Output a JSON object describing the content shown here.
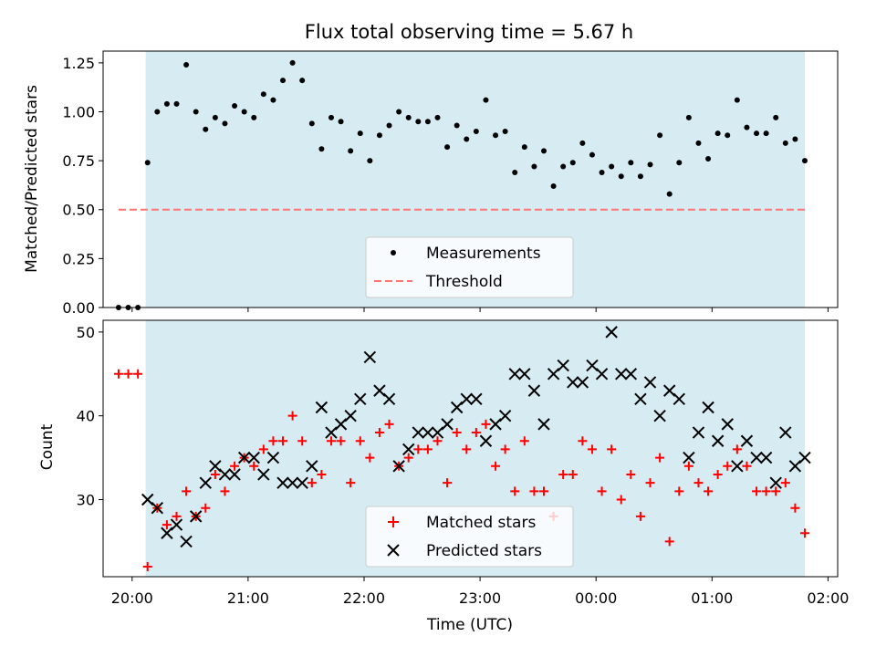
{
  "chart_data": [
    {
      "type": "scatter",
      "title": "Flux total observing time = 5.67 h",
      "xlabel": "",
      "ylabel": "Matched/Predicted stars",
      "xlim": [
        "19:45",
        "02:05"
      ],
      "ylim": [
        0,
        1.31
      ],
      "xticks": [
        "20:00",
        "21:00",
        "22:00",
        "23:00",
        "00:00",
        "01:00",
        "02:00"
      ],
      "yticks": [
        "0.00",
        "0.25",
        "0.50",
        "0.75",
        "1.00",
        "1.25"
      ],
      "shaded_region": [
        "20:07",
        "01:48"
      ],
      "legend": {
        "placement": "lower-center"
      },
      "series": [
        {
          "name": "Measurements",
          "color": "#000000",
          "marker": "dot",
          "points": [
            [
              "19:53",
              0.0
            ],
            [
              "19:58",
              0.0
            ],
            [
              "20:03",
              0.0
            ],
            [
              "20:08",
              0.74
            ],
            [
              "20:13",
              1.0
            ],
            [
              "20:18",
              1.04
            ],
            [
              "20:23",
              1.04
            ],
            [
              "20:28",
              1.24
            ],
            [
              "20:33",
              1.0
            ],
            [
              "20:38",
              0.91
            ],
            [
              "20:43",
              0.97
            ],
            [
              "20:48",
              0.94
            ],
            [
              "20:53",
              1.03
            ],
            [
              "20:58",
              1.0
            ],
            [
              "21:03",
              0.97
            ],
            [
              "21:08",
              1.09
            ],
            [
              "21:13",
              1.06
            ],
            [
              "21:18",
              1.16
            ],
            [
              "21:23",
              1.25
            ],
            [
              "21:28",
              1.16
            ],
            [
              "21:33",
              0.94
            ],
            [
              "21:38",
              0.81
            ],
            [
              "21:43",
              0.97
            ],
            [
              "21:48",
              0.95
            ],
            [
              "21:53",
              0.8
            ],
            [
              "21:58",
              0.89
            ],
            [
              "22:03",
              0.75
            ],
            [
              "22:08",
              0.88
            ],
            [
              "22:13",
              0.93
            ],
            [
              "22:18",
              1.0
            ],
            [
              "22:23",
              0.97
            ],
            [
              "22:28",
              0.95
            ],
            [
              "22:33",
              0.95
            ],
            [
              "22:38",
              0.97
            ],
            [
              "22:43",
              0.82
            ],
            [
              "22:48",
              0.93
            ],
            [
              "22:53",
              0.86
            ],
            [
              "22:58",
              0.9
            ],
            [
              "23:03",
              1.06
            ],
            [
              "23:08",
              0.88
            ],
            [
              "23:13",
              0.9
            ],
            [
              "23:18",
              0.69
            ],
            [
              "23:23",
              0.82
            ],
            [
              "23:28",
              0.72
            ],
            [
              "23:33",
              0.8
            ],
            [
              "23:38",
              0.62
            ],
            [
              "23:43",
              0.72
            ],
            [
              "23:48",
              0.74
            ],
            [
              "23:53",
              0.84
            ],
            [
              "23:58",
              0.78
            ],
            [
              "00:03",
              0.69
            ],
            [
              "00:08",
              0.72
            ],
            [
              "00:13",
              0.67
            ],
            [
              "00:18",
              0.74
            ],
            [
              "00:23",
              0.67
            ],
            [
              "00:28",
              0.73
            ],
            [
              "00:33",
              0.88
            ],
            [
              "00:38",
              0.58
            ],
            [
              "00:43",
              0.74
            ],
            [
              "00:48",
              0.97
            ],
            [
              "00:53",
              0.84
            ],
            [
              "00:58",
              0.76
            ],
            [
              "01:03",
              0.89
            ],
            [
              "01:08",
              0.88
            ],
            [
              "01:13",
              1.06
            ],
            [
              "01:18",
              0.92
            ],
            [
              "01:23",
              0.89
            ],
            [
              "01:28",
              0.89
            ],
            [
              "01:33",
              0.97
            ],
            [
              "01:38",
              0.84
            ],
            [
              "01:43",
              0.86
            ],
            [
              "01:48",
              0.75
            ]
          ]
        },
        {
          "name": "Threshold",
          "color": "#ff7575",
          "style": "dashed",
          "points": [
            [
              "19:53",
              0.5
            ],
            [
              "01:48",
              0.5
            ]
          ]
        }
      ]
    },
    {
      "type": "scatter",
      "title": "",
      "xlabel": "Time (UTC)",
      "ylabel": "Count",
      "xlim": [
        "19:45",
        "02:05"
      ],
      "ylim": [
        20.8,
        51.4
      ],
      "xticks": [
        "20:00",
        "21:00",
        "22:00",
        "23:00",
        "00:00",
        "01:00",
        "02:00"
      ],
      "yticks": [
        "30",
        "40",
        "50"
      ],
      "shaded_region": [
        "20:07",
        "01:48"
      ],
      "legend": {
        "placement": "lower-center"
      },
      "series": [
        {
          "name": "Matched stars",
          "color": "#ff0000",
          "marker": "plus",
          "points": [
            [
              "19:53",
              45
            ],
            [
              "19:58",
              45
            ],
            [
              "20:03",
              45
            ],
            [
              "20:08",
              22
            ],
            [
              "20:13",
              29
            ],
            [
              "20:18",
              27
            ],
            [
              "20:23",
              28
            ],
            [
              "20:28",
              31
            ],
            [
              "20:33",
              28
            ],
            [
              "20:38",
              29
            ],
            [
              "20:43",
              33
            ],
            [
              "20:48",
              31
            ],
            [
              "20:53",
              34
            ],
            [
              "20:58",
              35
            ],
            [
              "21:03",
              34
            ],
            [
              "21:08",
              36
            ],
            [
              "21:13",
              37
            ],
            [
              "21:18",
              37
            ],
            [
              "21:23",
              40
            ],
            [
              "21:28",
              37
            ],
            [
              "21:33",
              32
            ],
            [
              "21:38",
              33
            ],
            [
              "21:43",
              37
            ],
            [
              "21:48",
              37
            ],
            [
              "21:53",
              32
            ],
            [
              "21:58",
              37
            ],
            [
              "22:03",
              35
            ],
            [
              "22:08",
              38
            ],
            [
              "22:13",
              39
            ],
            [
              "22:18",
              34
            ],
            [
              "22:23",
              35
            ],
            [
              "22:28",
              36
            ],
            [
              "22:33",
              36
            ],
            [
              "22:38",
              37
            ],
            [
              "22:43",
              32
            ],
            [
              "22:48",
              38
            ],
            [
              "22:53",
              36
            ],
            [
              "22:58",
              38
            ],
            [
              "23:03",
              39
            ],
            [
              "23:08",
              34
            ],
            [
              "23:13",
              36
            ],
            [
              "23:18",
              31
            ],
            [
              "23:23",
              37
            ],
            [
              "23:28",
              31
            ],
            [
              "23:33",
              31
            ],
            [
              "23:38",
              28
            ],
            [
              "23:43",
              33
            ],
            [
              "23:48",
              33
            ],
            [
              "23:53",
              37
            ],
            [
              "23:58",
              36
            ],
            [
              "00:03",
              31
            ],
            [
              "00:08",
              36
            ],
            [
              "00:13",
              30
            ],
            [
              "00:18",
              33
            ],
            [
              "00:23",
              28
            ],
            [
              "00:28",
              32
            ],
            [
              "00:33",
              35
            ],
            [
              "00:38",
              25
            ],
            [
              "00:43",
              31
            ],
            [
              "00:48",
              34
            ],
            [
              "00:53",
              32
            ],
            [
              "00:58",
              31
            ],
            [
              "01:03",
              33
            ],
            [
              "01:08",
              34
            ],
            [
              "01:13",
              36
            ],
            [
              "01:18",
              34
            ],
            [
              "01:23",
              31
            ],
            [
              "01:28",
              31
            ],
            [
              "01:33",
              31
            ],
            [
              "01:38",
              32
            ],
            [
              "01:43",
              29
            ],
            [
              "01:48",
              26
            ]
          ]
        },
        {
          "name": "Predicted stars",
          "color": "#000000",
          "marker": "x",
          "points": [
            [
              "20:08",
              30
            ],
            [
              "20:13",
              29
            ],
            [
              "20:18",
              26
            ],
            [
              "20:23",
              27
            ],
            [
              "20:28",
              25
            ],
            [
              "20:33",
              28
            ],
            [
              "20:38",
              32
            ],
            [
              "20:43",
              34
            ],
            [
              "20:48",
              33
            ],
            [
              "20:53",
              33
            ],
            [
              "20:58",
              35
            ],
            [
              "21:03",
              35
            ],
            [
              "21:08",
              33
            ],
            [
              "21:13",
              35
            ],
            [
              "21:18",
              32
            ],
            [
              "21:23",
              32
            ],
            [
              "21:28",
              32
            ],
            [
              "21:33",
              34
            ],
            [
              "21:38",
              41
            ],
            [
              "21:43",
              38
            ],
            [
              "21:48",
              39
            ],
            [
              "21:53",
              40
            ],
            [
              "21:58",
              42
            ],
            [
              "22:03",
              47
            ],
            [
              "22:08",
              43
            ],
            [
              "22:13",
              42
            ],
            [
              "22:18",
              34
            ],
            [
              "22:23",
              36
            ],
            [
              "22:28",
              38
            ],
            [
              "22:33",
              38
            ],
            [
              "22:38",
              38
            ],
            [
              "22:43",
              39
            ],
            [
              "22:48",
              41
            ],
            [
              "22:53",
              42
            ],
            [
              "22:58",
              42
            ],
            [
              "23:03",
              37
            ],
            [
              "23:08",
              39
            ],
            [
              "23:13",
              40
            ],
            [
              "23:18",
              45
            ],
            [
              "23:23",
              45
            ],
            [
              "23:28",
              43
            ],
            [
              "23:33",
              39
            ],
            [
              "23:38",
              45
            ],
            [
              "23:43",
              46
            ],
            [
              "23:48",
              44
            ],
            [
              "23:53",
              44
            ],
            [
              "23:58",
              46
            ],
            [
              "00:03",
              45
            ],
            [
              "00:08",
              50
            ],
            [
              "00:13",
              45
            ],
            [
              "00:18",
              45
            ],
            [
              "00:23",
              42
            ],
            [
              "00:28",
              44
            ],
            [
              "00:33",
              40
            ],
            [
              "00:38",
              43
            ],
            [
              "00:43",
              42
            ],
            [
              "00:48",
              35
            ],
            [
              "00:53",
              38
            ],
            [
              "00:58",
              41
            ],
            [
              "01:03",
              37
            ],
            [
              "01:08",
              39
            ],
            [
              "01:13",
              34
            ],
            [
              "01:18",
              37
            ],
            [
              "01:23",
              35
            ],
            [
              "01:28",
              35
            ],
            [
              "01:33",
              32
            ],
            [
              "01:38",
              38
            ],
            [
              "01:43",
              34
            ],
            [
              "01:48",
              35
            ]
          ]
        }
      ]
    }
  ]
}
